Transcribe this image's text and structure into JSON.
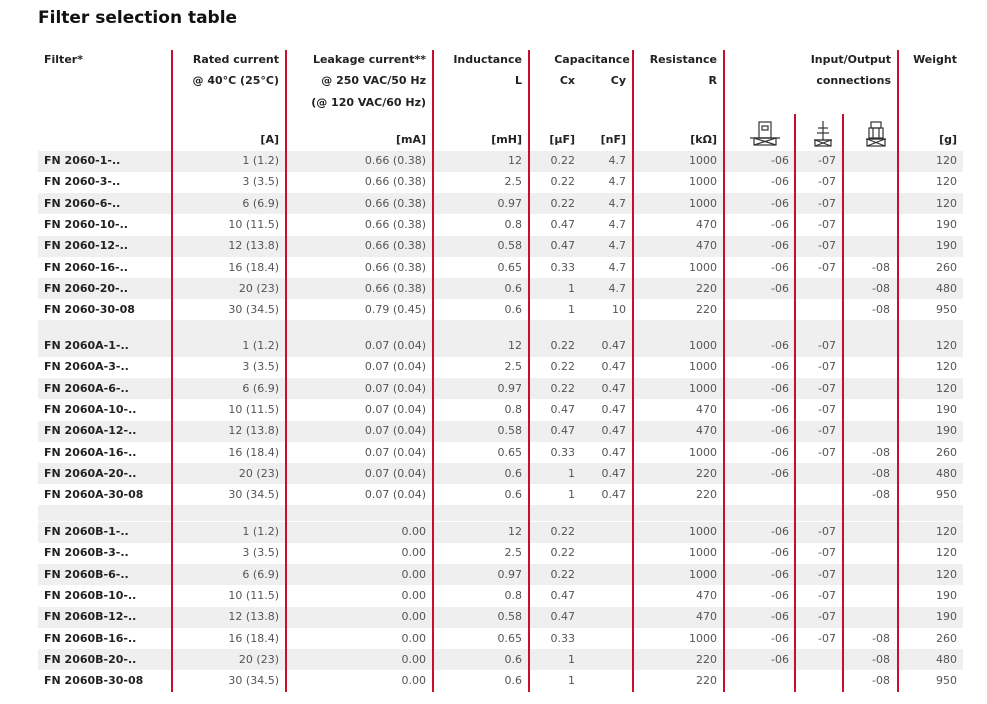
{
  "title": "Filter selection table",
  "header": [
    "Filter*",
    "Rated current",
    "@ 40°C (25°C)",
    "Leakage current**",
    "@ 250 VAC/50 Hz",
    "(@ 120 VAC/60 Hz)",
    "Inductance",
    "L",
    "Capacitance",
    "Cx",
    "Cy",
    "Resistance",
    "R",
    "Input/Output",
    "connections",
    "Weight"
  ],
  "units": [
    "[A]",
    "[mA]",
    "[mH]",
    "[µF]",
    "[nF]",
    "[kΩ]",
    "[g]"
  ],
  "sections": [
    [
      [
        "FN 2060-1-..",
        "1 (1.2)",
        "0.66 (0.38)",
        12,
        0.22,
        4.7,
        1000,
        "-06",
        "-07",
        null,
        120
      ],
      [
        "FN 2060-3-..",
        "3 (3.5)",
        "0.66 (0.38)",
        2.5,
        0.22,
        4.7,
        1000,
        "-06",
        "-07",
        null,
        120
      ],
      [
        "FN 2060-6-..",
        "6 (6.9)",
        "0.66 (0.38)",
        0.97,
        0.22,
        4.7,
        1000,
        "-06",
        "-07",
        null,
        120
      ],
      [
        "FN 2060-10-..",
        "10 (11.5)",
        "0.66 (0.38)",
        0.8,
        0.47,
        4.7,
        470,
        "-06",
        "-07",
        null,
        190
      ],
      [
        "FN 2060-12-..",
        "12 (13.8)",
        "0.66 (0.38)",
        0.58,
        0.47,
        4.7,
        470,
        "-06",
        "-07",
        null,
        190
      ],
      [
        "FN 2060-16-..",
        "16 (18.4)",
        "0.66 (0.38)",
        0.65,
        0.33,
        4.7,
        1000,
        "-06",
        "-07",
        "-08",
        260
      ],
      [
        "FN 2060-20-..",
        "20 (23)",
        "0.66 (0.38)",
        0.6,
        1,
        4.7,
        220,
        "-06",
        null,
        "-08",
        480
      ],
      [
        "FN 2060-30-08",
        "30 (34.5)",
        "0.79 (0.45)",
        0.6,
        1,
        10,
        220,
        null,
        null,
        "-08",
        950
      ]
    ],
    [
      [
        "FN 2060A-1-..",
        "1 (1.2)",
        "0.07 (0.04)",
        12,
        0.22,
        0.47,
        1000,
        "-06",
        "-07",
        null,
        120
      ],
      [
        "FN 2060A-3-..",
        "3 (3.5)",
        "0.07 (0.04)",
        2.5,
        0.22,
        0.47,
        1000,
        "-06",
        "-07",
        null,
        120
      ],
      [
        "FN 2060A-6-..",
        "6 (6.9)",
        "0.07 (0.04)",
        0.97,
        0.22,
        0.47,
        1000,
        "-06",
        "-07",
        null,
        120
      ],
      [
        "FN 2060A-10-..",
        "10 (11.5)",
        "0.07 (0.04)",
        0.8,
        0.47,
        0.47,
        470,
        "-06",
        "-07",
        null,
        190
      ],
      [
        "FN 2060A-12-..",
        "12 (13.8)",
        "0.07 (0.04)",
        0.58,
        0.47,
        0.47,
        470,
        "-06",
        "-07",
        null,
        190
      ],
      [
        "FN 2060A-16-..",
        "16 (18.4)",
        "0.07 (0.04)",
        0.65,
        0.33,
        0.47,
        1000,
        "-06",
        "-07",
        "-08",
        260
      ],
      [
        "FN 2060A-20-..",
        "20 (23)",
        "0.07 (0.04)",
        0.6,
        1,
        0.47,
        220,
        "-06",
        null,
        "-08",
        480
      ],
      [
        "FN 2060A-30-08",
        "30 (34.5)",
        "0.07 (0.04)",
        0.6,
        1,
        0.47,
        220,
        null,
        null,
        "-08",
        950
      ]
    ],
    [
      [
        "FN 2060B-1-..",
        "1 (1.2)",
        "0.00",
        12,
        0.22,
        null,
        1000,
        "-06",
        "-07",
        null,
        120
      ],
      [
        "FN 2060B-3-..",
        "3 (3.5)",
        "0.00",
        2.5,
        0.22,
        null,
        1000,
        "-06",
        "-07",
        null,
        120
      ],
      [
        "FN 2060B-6-..",
        "6 (6.9)",
        "0.00",
        0.97,
        0.22,
        null,
        1000,
        "-06",
        "-07",
        null,
        120
      ],
      [
        "FN 2060B-10-..",
        "10 (11.5)",
        "0.00",
        0.8,
        0.47,
        null,
        470,
        "-06",
        "-07",
        null,
        190
      ],
      [
        "FN 2060B-12-..",
        "12 (13.8)",
        "0.00",
        0.58,
        0.47,
        null,
        470,
        "-06",
        "-07",
        null,
        190
      ],
      [
        "FN 2060B-16-..",
        "16 (18.4)",
        "0.00",
        0.65,
        0.33,
        null,
        1000,
        "-06",
        "-07",
        "-08",
        260
      ],
      [
        "FN 2060B-20-..",
        "20 (23)",
        "0.00",
        0.6,
        1,
        null,
        220,
        "-06",
        null,
        "-08",
        480
      ],
      [
        "FN 2060B-30-08",
        "30 (34.5)",
        "0.00",
        0.6,
        1,
        null,
        220,
        null,
        null,
        "-08",
        950
      ]
    ]
  ]
}
